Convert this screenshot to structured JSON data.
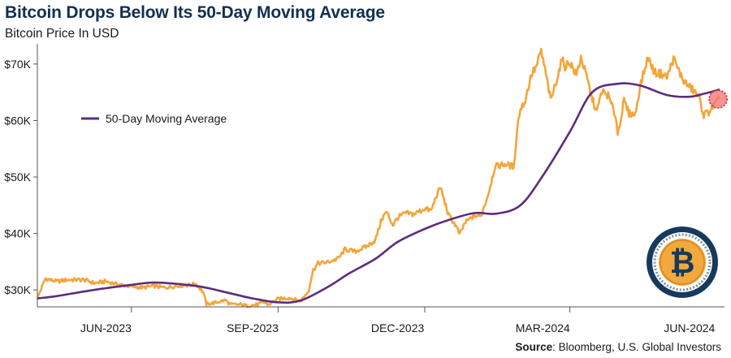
{
  "header": {
    "title": "Bitcoin Drops Below Its 50-Day Moving Average",
    "subtitle": "Bitcoin Price In USD"
  },
  "footer": {
    "source_label": "Source",
    "source_text": ": Bloomberg, U.S. Global Investors"
  },
  "colors": {
    "price": "#f4a53a",
    "moving_average": "#5c2d7e",
    "highlight": "#f07878",
    "axis": "#555555"
  },
  "chart_data": {
    "type": "line",
    "title": "Bitcoin Drops Below Its 50-Day Moving Average",
    "subtitle": "Bitcoin Price In USD",
    "xlabel": "",
    "ylabel": "",
    "ylim": [
      27000,
      73000
    ],
    "yticks": [
      30000,
      40000,
      50000,
      60000,
      70000
    ],
    "ytick_labels": [
      "$30K",
      "$40K",
      "$50K",
      "$60K",
      "$70K"
    ],
    "xlim": [
      "2023-05-03",
      "2024-07-07"
    ],
    "xtick_positions": [
      "2023-07-01",
      "2023-10-01",
      "2024-01-01",
      "2024-04-01"
    ],
    "xcategory_labels": [
      {
        "label": "JUN-2023",
        "date": "2023-06-15"
      },
      {
        "label": "SEP-2023",
        "date": "2023-09-15"
      },
      {
        "label": "DEC-2023",
        "date": "2023-12-15"
      },
      {
        "label": "MAR-2024",
        "date": "2024-03-15"
      },
      {
        "label": "JUN-2024",
        "date": "2024-06-15"
      }
    ],
    "legend": {
      "label": "50-Day Moving Average",
      "position": "upper-left"
    },
    "highlight_point": {
      "date": "2024-07-04",
      "value": 63800
    },
    "series": [
      {
        "name": "Bitcoin Price",
        "points": [
          [
            "2023-05-03",
            28500
          ],
          [
            "2023-05-08",
            32000
          ],
          [
            "2023-05-15",
            31500
          ],
          [
            "2023-05-22",
            31800
          ],
          [
            "2023-06-01",
            31800
          ],
          [
            "2023-06-08",
            31200
          ],
          [
            "2023-06-15",
            31500
          ],
          [
            "2023-06-22",
            31000
          ],
          [
            "2023-07-01",
            30600
          ],
          [
            "2023-07-08",
            30400
          ],
          [
            "2023-07-15",
            30700
          ],
          [
            "2023-07-22",
            30400
          ],
          [
            "2023-08-01",
            30800
          ],
          [
            "2023-08-08",
            30900
          ],
          [
            "2023-08-10",
            31200
          ],
          [
            "2023-08-15",
            29600
          ],
          [
            "2023-08-17",
            27500
          ],
          [
            "2023-08-22",
            27700
          ],
          [
            "2023-08-29",
            28200
          ],
          [
            "2023-09-01",
            27400
          ],
          [
            "2023-09-08",
            27400
          ],
          [
            "2023-09-11",
            27200
          ],
          [
            "2023-09-18",
            27400
          ],
          [
            "2023-09-22",
            27800
          ],
          [
            "2023-09-25",
            27400
          ],
          [
            "2023-10-01",
            28400
          ],
          [
            "2023-10-08",
            28600
          ],
          [
            "2023-10-15",
            28000
          ],
          [
            "2023-10-20",
            29800
          ],
          [
            "2023-10-23",
            33500
          ],
          [
            "2023-10-26",
            34700
          ],
          [
            "2023-11-01",
            34900
          ],
          [
            "2023-11-08",
            35600
          ],
          [
            "2023-11-12",
            37200
          ],
          [
            "2023-11-18",
            36800
          ],
          [
            "2023-11-25",
            37600
          ],
          [
            "2023-12-01",
            38800
          ],
          [
            "2023-12-05",
            42600
          ],
          [
            "2023-12-08",
            43800
          ],
          [
            "2023-12-12",
            41500
          ],
          [
            "2023-12-15",
            42800
          ],
          [
            "2023-12-20",
            43600
          ],
          [
            "2023-12-25",
            43400
          ],
          [
            "2024-01-01",
            44400
          ],
          [
            "2024-01-05",
            44000
          ],
          [
            "2024-01-08",
            46500
          ],
          [
            "2024-01-11",
            48200
          ],
          [
            "2024-01-13",
            46000
          ],
          [
            "2024-01-16",
            43200
          ],
          [
            "2024-01-20",
            41600
          ],
          [
            "2024-01-23",
            39800
          ],
          [
            "2024-01-26",
            41800
          ],
          [
            "2024-02-01",
            43200
          ],
          [
            "2024-02-05",
            43000
          ],
          [
            "2024-02-08",
            45400
          ],
          [
            "2024-02-10",
            47200
          ],
          [
            "2024-02-14",
            51800
          ],
          [
            "2024-02-20",
            52300
          ],
          [
            "2024-02-26",
            51800
          ],
          [
            "2024-02-28",
            59000
          ],
          [
            "2024-03-01",
            62000
          ],
          [
            "2024-03-04",
            63500
          ],
          [
            "2024-03-06",
            66000
          ],
          [
            "2024-03-08",
            68200
          ],
          [
            "2024-03-11",
            69500
          ],
          [
            "2024-03-14",
            72300
          ],
          [
            "2024-03-17",
            68200
          ],
          [
            "2024-03-20",
            63500
          ],
          [
            "2024-03-24",
            67500
          ],
          [
            "2024-03-27",
            70800
          ],
          [
            "2024-03-29",
            69600
          ],
          [
            "2024-04-01",
            70400
          ],
          [
            "2024-04-05",
            68000
          ],
          [
            "2024-04-08",
            71200
          ],
          [
            "2024-04-12",
            67200
          ],
          [
            "2024-04-15",
            63800
          ],
          [
            "2024-04-18",
            61500
          ],
          [
            "2024-04-21",
            65200
          ],
          [
            "2024-04-25",
            64400
          ],
          [
            "2024-04-30",
            60500
          ],
          [
            "2024-05-01",
            57500
          ],
          [
            "2024-05-05",
            63500
          ],
          [
            "2024-05-08",
            61300
          ],
          [
            "2024-05-12",
            61000
          ],
          [
            "2024-05-15",
            66000
          ],
          [
            "2024-05-20",
            71200
          ],
          [
            "2024-05-24",
            68500
          ],
          [
            "2024-05-28",
            68300
          ],
          [
            "2024-06-01",
            67700
          ],
          [
            "2024-06-05",
            71000
          ],
          [
            "2024-06-07",
            69600
          ],
          [
            "2024-06-11",
            67200
          ],
          [
            "2024-06-14",
            66200
          ],
          [
            "2024-06-18",
            65200
          ],
          [
            "2024-06-21",
            64100
          ],
          [
            "2024-06-24",
            61000
          ],
          [
            "2024-06-27",
            61500
          ],
          [
            "2024-07-01",
            62900
          ],
          [
            "2024-07-04",
            63800
          ]
        ]
      },
      {
        "name": "50-Day Moving Average",
        "points": [
          [
            "2023-05-03",
            28500
          ],
          [
            "2023-05-15",
            28900
          ],
          [
            "2023-06-01",
            29700
          ],
          [
            "2023-06-15",
            30300
          ],
          [
            "2023-07-01",
            30900
          ],
          [
            "2023-07-15",
            31300
          ],
          [
            "2023-08-01",
            31000
          ],
          [
            "2023-08-15",
            30500
          ],
          [
            "2023-09-01",
            29400
          ],
          [
            "2023-09-15",
            28500
          ],
          [
            "2023-10-01",
            27800
          ],
          [
            "2023-10-15",
            28100
          ],
          [
            "2023-11-01",
            30500
          ],
          [
            "2023-11-15",
            33000
          ],
          [
            "2023-12-01",
            35500
          ],
          [
            "2023-12-15",
            38500
          ],
          [
            "2024-01-01",
            40800
          ],
          [
            "2024-01-15",
            42300
          ],
          [
            "2024-02-01",
            43600
          ],
          [
            "2024-02-15",
            43500
          ],
          [
            "2024-03-01",
            45000
          ],
          [
            "2024-03-15",
            50200
          ],
          [
            "2024-04-01",
            58000
          ],
          [
            "2024-04-15",
            65000
          ],
          [
            "2024-05-01",
            66500
          ],
          [
            "2024-05-15",
            66200
          ],
          [
            "2024-06-01",
            64500
          ],
          [
            "2024-06-15",
            64200
          ],
          [
            "2024-06-25",
            64800
          ],
          [
            "2024-07-04",
            65500
          ]
        ]
      }
    ]
  }
}
